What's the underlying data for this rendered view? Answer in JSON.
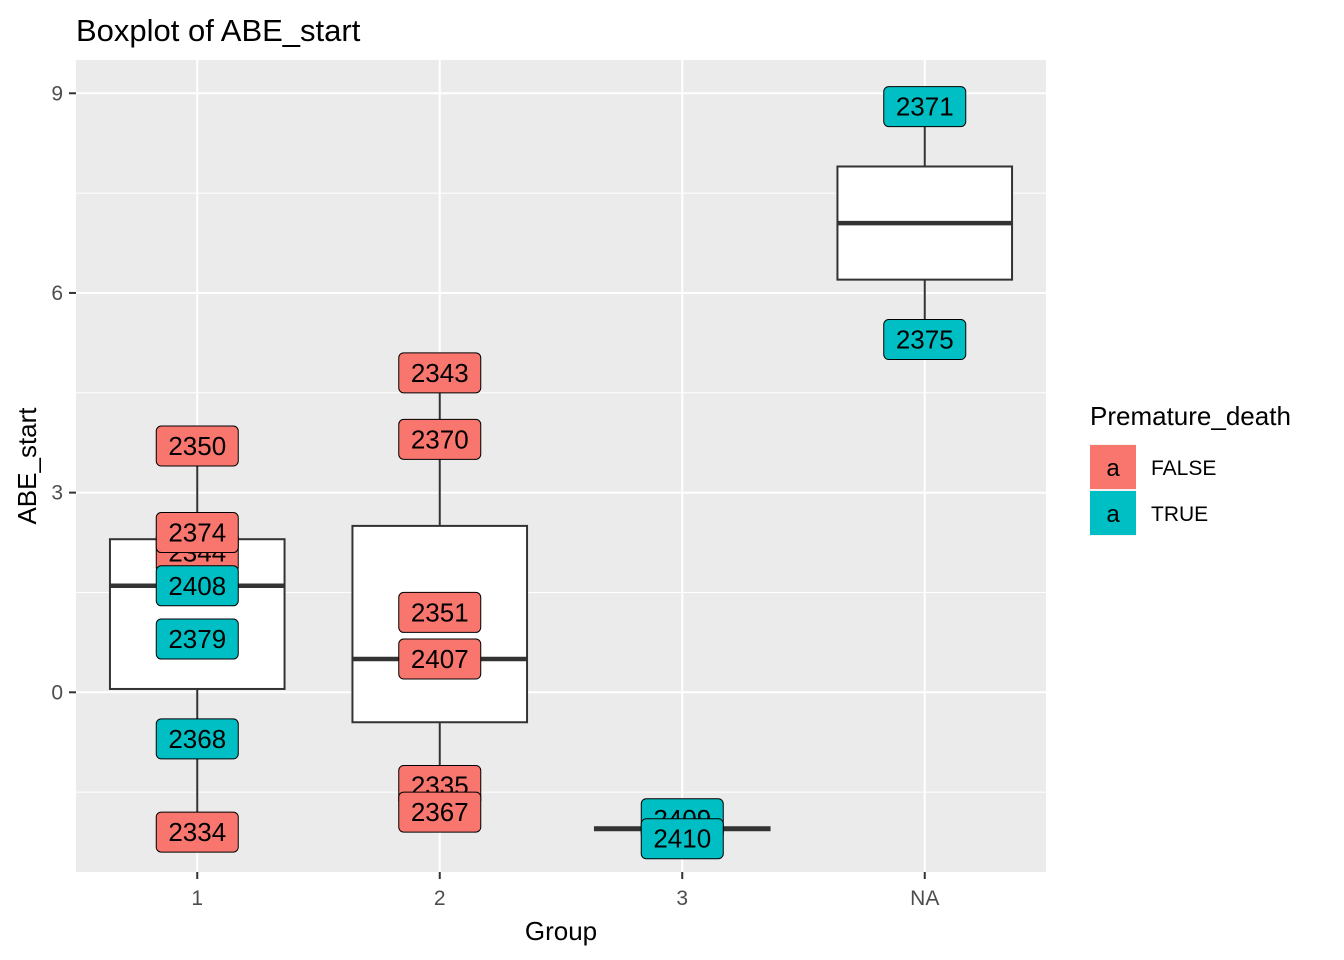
{
  "chart_data": {
    "type": "boxplot",
    "title": "Boxplot of  ABE_start",
    "xlabel": "Group",
    "ylabel": "ABE_start",
    "categories": [
      "1",
      "2",
      "3",
      "NA"
    ],
    "ylim": [
      -2.7,
      9.5
    ],
    "yticks": [
      0,
      3,
      6,
      9
    ],
    "grid": true,
    "legend": {
      "title": "Premature_death",
      "position": "right",
      "key_glyph": "a",
      "entries": [
        {
          "label": "FALSE",
          "color": "#F8766D"
        },
        {
          "label": "TRUE",
          "color": "#00BFC4"
        }
      ]
    },
    "boxes": [
      {
        "group": "1",
        "lower_whisker": -1.85,
        "q1": 0.05,
        "median": 1.6,
        "q3": 2.3,
        "upper_whisker": 3.7
      },
      {
        "group": "2",
        "lower_whisker": -1.6,
        "q1": -0.45,
        "median": 0.5,
        "q3": 2.5,
        "upper_whisker": 4.8
      },
      {
        "group": "3",
        "lower_whisker": -2.05,
        "q1": -2.05,
        "median": -2.05,
        "q3": -2.05,
        "upper_whisker": -2.05
      },
      {
        "group": "NA",
        "lower_whisker": 5.3,
        "q1": 6.2,
        "median": 7.05,
        "q3": 7.9,
        "upper_whisker": 8.8
      }
    ],
    "points": [
      {
        "group": "1",
        "label": "2350",
        "y": 3.7,
        "premature_death": "FALSE"
      },
      {
        "group": "1",
        "label": "2344",
        "y": 2.1,
        "premature_death": "FALSE"
      },
      {
        "group": "1",
        "label": "2374",
        "y": 2.4,
        "premature_death": "FALSE"
      },
      {
        "group": "1",
        "label": "2408",
        "y": 1.6,
        "premature_death": "TRUE"
      },
      {
        "group": "1",
        "label": "2379",
        "y": 0.8,
        "premature_death": "TRUE"
      },
      {
        "group": "1",
        "label": "2368",
        "y": -0.7,
        "premature_death": "TRUE"
      },
      {
        "group": "1",
        "label": "2334",
        "y": -2.1,
        "premature_death": "FALSE"
      },
      {
        "group": "2",
        "label": "2343",
        "y": 4.8,
        "premature_death": "FALSE"
      },
      {
        "group": "2",
        "label": "2370",
        "y": 3.8,
        "premature_death": "FALSE"
      },
      {
        "group": "2",
        "label": "2351",
        "y": 1.2,
        "premature_death": "FALSE"
      },
      {
        "group": "2",
        "label": "2407",
        "y": 0.5,
        "premature_death": "FALSE"
      },
      {
        "group": "2",
        "label": "2335",
        "y": -1.4,
        "premature_death": "FALSE"
      },
      {
        "group": "2",
        "label": "2367",
        "y": -1.8,
        "premature_death": "FALSE"
      },
      {
        "group": "3",
        "label": "2409",
        "y": -1.9,
        "premature_death": "TRUE"
      },
      {
        "group": "3",
        "label": "2410",
        "y": -2.2,
        "premature_death": "TRUE"
      },
      {
        "group": "NA",
        "label": "2371",
        "y": 8.8,
        "premature_death": "TRUE"
      },
      {
        "group": "NA",
        "label": "2375",
        "y": 5.3,
        "premature_death": "TRUE"
      }
    ]
  }
}
